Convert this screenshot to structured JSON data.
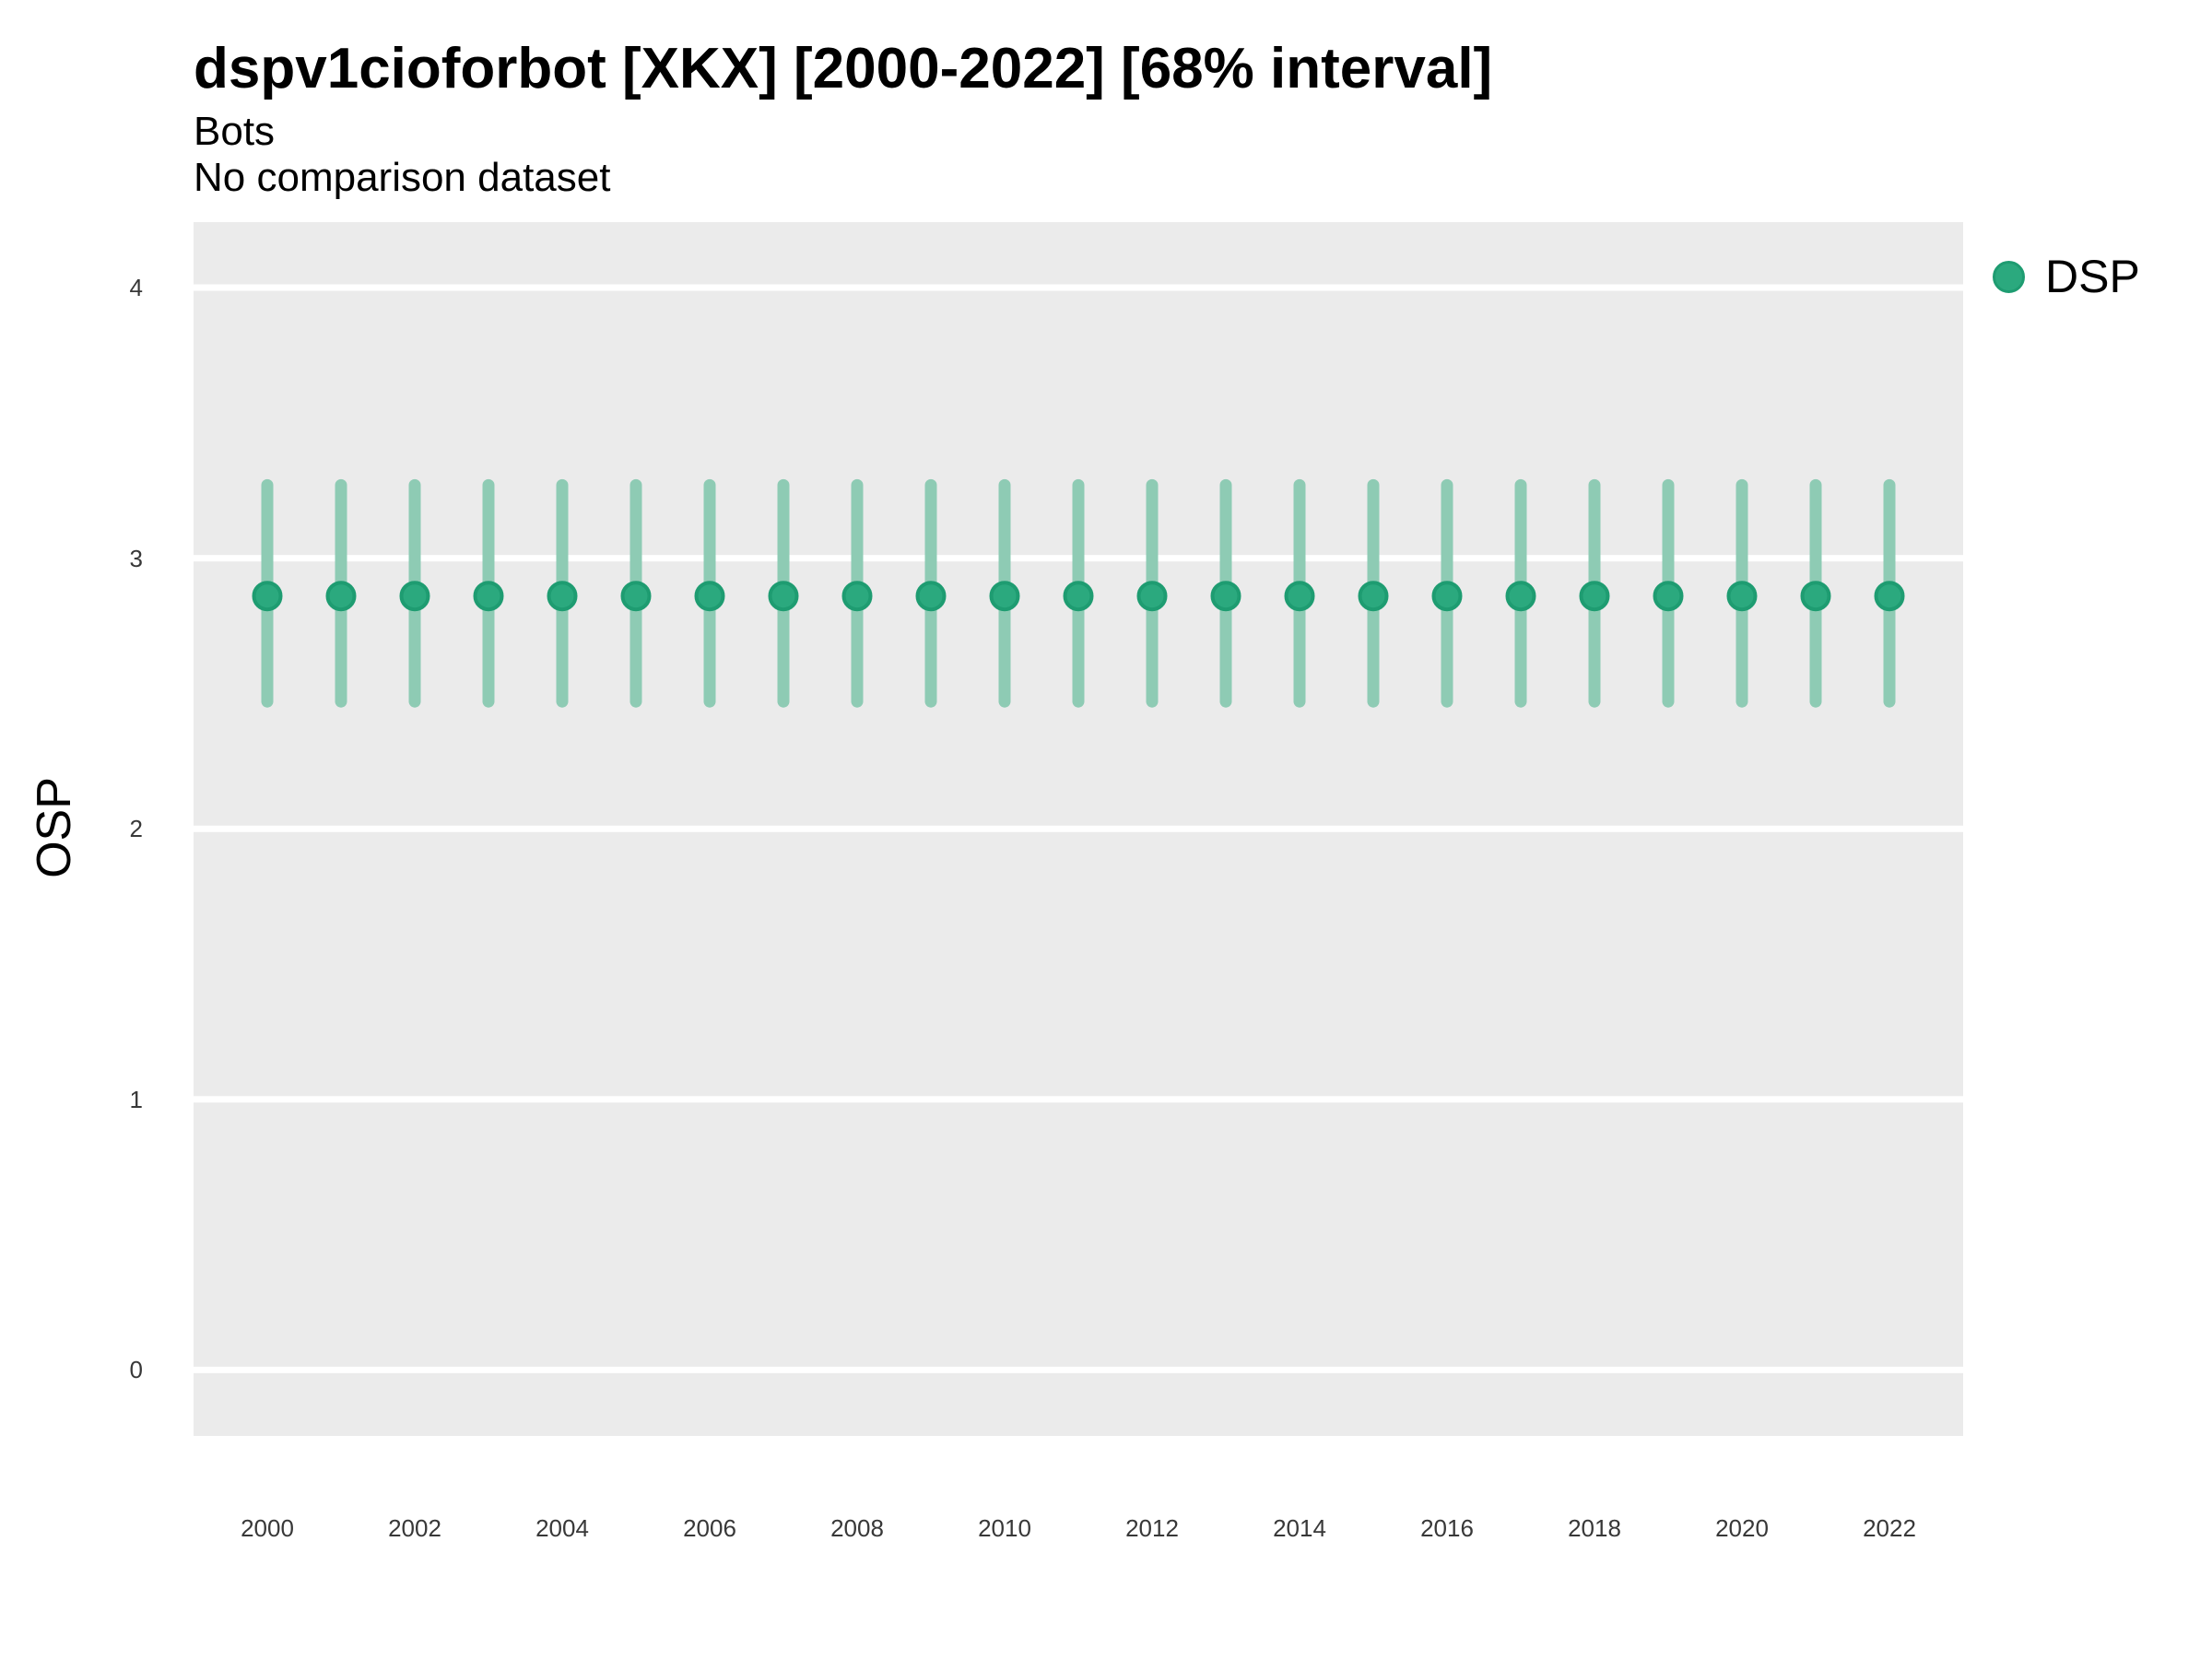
{
  "header": {
    "title": "dspv1cioforbot [XKX] [2000-2022] [68% interval]",
    "subtitle": "Bots",
    "comparison_note": "No comparison dataset"
  },
  "chart_data": {
    "type": "scatter",
    "title": "dspv1cioforbot [XKX] [2000-2022] [68% interval]",
    "subtitle": "Bots",
    "note": "No comparison dataset",
    "xlabel": "",
    "ylabel": "OSP",
    "interval_label": "68% interval",
    "x": [
      2000,
      2001,
      2002,
      2003,
      2004,
      2005,
      2006,
      2007,
      2008,
      2009,
      2010,
      2011,
      2012,
      2013,
      2014,
      2015,
      2016,
      2017,
      2018,
      2019,
      2020,
      2021,
      2022
    ],
    "x_ticks": [
      2000,
      2002,
      2004,
      2006,
      2008,
      2010,
      2012,
      2014,
      2016,
      2018,
      2020,
      2022
    ],
    "y_ticks": [
      0,
      1,
      2,
      3,
      4
    ],
    "ylim": [
      -0.24,
      4.24
    ],
    "grid": "horizontal-major-only",
    "legend_position": "right-top",
    "series": [
      {
        "name": "DSP",
        "marker": "circle",
        "color": "#2BA97E",
        "edge_color": "#1E9C71",
        "interval_color": "#8ECBB4",
        "values": [
          2.86,
          2.86,
          2.86,
          2.86,
          2.86,
          2.86,
          2.86,
          2.86,
          2.86,
          2.86,
          2.86,
          2.86,
          2.86,
          2.86,
          2.86,
          2.86,
          2.86,
          2.86,
          2.86,
          2.86,
          2.86,
          2.86,
          2.86
        ],
        "interval_low": [
          2.47,
          2.47,
          2.47,
          2.47,
          2.47,
          2.47,
          2.47,
          2.47,
          2.47,
          2.47,
          2.47,
          2.47,
          2.47,
          2.47,
          2.47,
          2.47,
          2.47,
          2.47,
          2.47,
          2.47,
          2.47,
          2.47,
          2.47
        ],
        "interval_high": [
          3.27,
          3.27,
          3.27,
          3.27,
          3.27,
          3.27,
          3.27,
          3.27,
          3.27,
          3.27,
          3.27,
          3.27,
          3.27,
          3.27,
          3.27,
          3.27,
          3.27,
          3.27,
          3.27,
          3.27,
          3.27,
          3.27,
          3.27
        ]
      }
    ],
    "colors": {
      "panel_bg": "#EBEBEB",
      "grid": "#FFFFFF",
      "tick_text": "#383838",
      "text": "#000000"
    }
  }
}
